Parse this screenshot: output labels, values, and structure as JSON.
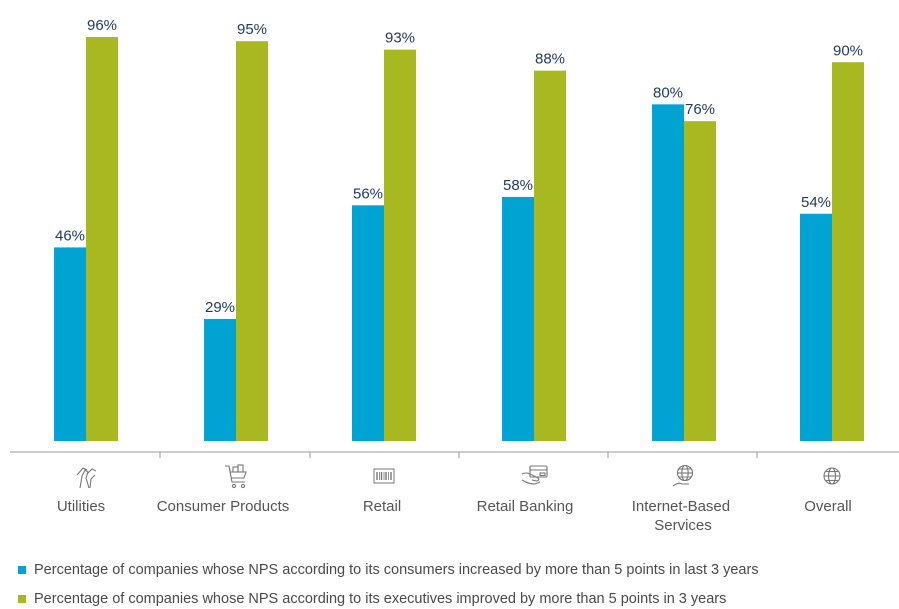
{
  "chart_data": {
    "type": "bar",
    "categories": [
      "Utilities",
      "Consumer Products",
      "Retail",
      "Retail Banking",
      "Internet-Based Services",
      "Overall"
    ],
    "category_icons": [
      "utilities-icon",
      "shopping-cart-icon",
      "barcode-icon",
      "credit-card-icon",
      "globe-hand-icon",
      "globe-icon"
    ],
    "series": [
      {
        "name": "Percentage of companies whose NPS according to its consumers increased by more than 5 points in last 3 years",
        "color": "#00a3d2",
        "values": [
          46,
          29,
          56,
          58,
          80,
          54
        ],
        "labels": [
          "46%",
          "29%",
          "56%",
          "58%",
          "80%",
          "54%"
        ]
      },
      {
        "name": "Percentage of companies whose NPS according to its executives improved by more than 5 points in 3 years",
        "color": "#a8b820",
        "values": [
          96,
          95,
          93,
          88,
          76,
          90
        ],
        "labels": [
          "96%",
          "95%",
          "93%",
          "88%",
          "76%",
          "90%"
        ]
      }
    ],
    "ylim": [
      0,
      100
    ],
    "grid": false,
    "legend_position": "bottom-left"
  }
}
